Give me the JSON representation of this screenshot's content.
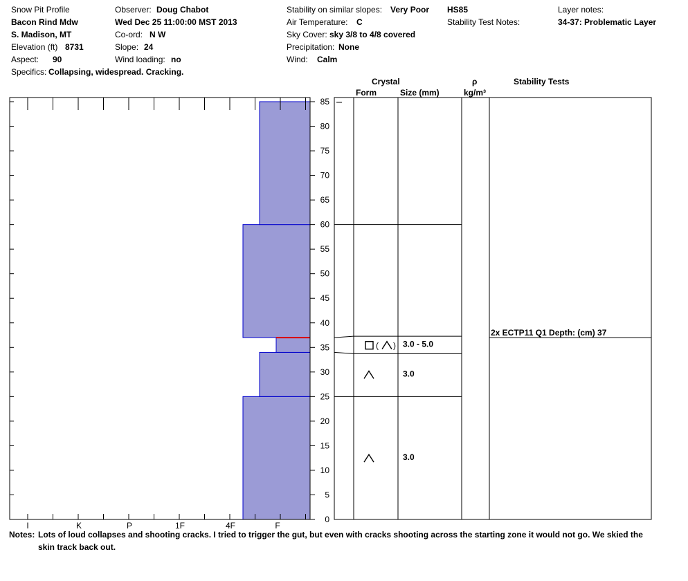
{
  "header": {
    "title": "Snow Pit Profile",
    "location": "Bacon Rind Mdw",
    "region": "S. Madison, MT",
    "elevation_label": "Elevation (ft)",
    "elevation_value": "8731",
    "aspect_label": "Aspect:",
    "aspect_value": "90",
    "specifics_label": "Specifics:",
    "specifics_value": "Collapsing, widespread. Cracking.",
    "observer_label": "Observer:",
    "observer_value": "Doug Chabot",
    "date": "Wed Dec 25 11:00:00 MST 2013",
    "coord_label": "Co-ord:",
    "coord_value": "N  W",
    "slope_label": "Slope:",
    "slope_value": "24",
    "wind_loading_label": "Wind loading:",
    "wind_loading_value": "no",
    "stability_label": "Stability on similar slopes:",
    "stability_value": "Very Poor",
    "air_temp_label": "Air Temperature:",
    "air_temp_value": "C",
    "sky_label": "Sky Cover:",
    "sky_value": "sky 3/8 to 4/8 covered",
    "precip_label": "Precipitation:",
    "precip_value": "None",
    "wind_label": "Wind:",
    "wind_value": "Calm",
    "hs": "HS85",
    "stability_notes_label": "Stability Test Notes:",
    "layer_notes_label": "Layer notes:",
    "layer_notes_value": "34-37: Problematic Layer"
  },
  "columns": {
    "crystal": "Crystal",
    "form": "Form",
    "size": "Size (mm)",
    "rho": "ρ",
    "density_unit": "kg/m³",
    "stability_tests": "Stability Tests"
  },
  "chart_data": {
    "type": "bar",
    "orientation": "horizontal-step",
    "y_axis": {
      "min": 0,
      "max": 85,
      "ticks": [
        "0",
        "5",
        "10",
        "15",
        "20",
        "25",
        "30",
        "35",
        "40",
        "45",
        "50",
        "55",
        "60",
        "65",
        "70",
        "75",
        "80",
        "85"
      ]
    },
    "hardness_ticks": [
      "I",
      "K",
      "P",
      "1F",
      "4F",
      "F"
    ],
    "colors": {
      "fill": "#9b9bd6",
      "edge": "#0000cc",
      "weak_layer": "#dd0000"
    },
    "layers": [
      {
        "bottom": 0,
        "top": 25,
        "hardness": 4.0
      },
      {
        "bottom": 25,
        "top": 34,
        "hardness": 3.4
      },
      {
        "bottom": 34,
        "top": 37,
        "hardness": 2.1
      },
      {
        "bottom": 37,
        "top": 60,
        "hardness": 4.0
      },
      {
        "bottom": 60,
        "top": 85,
        "hardness": 3.4
      }
    ],
    "weak_layer_depth": 37,
    "crystal_layers": [
      {
        "bottom": 0,
        "top": 25,
        "form": "depth-hoar",
        "size": "3.0"
      },
      {
        "bottom": 25,
        "top": 34,
        "form": "depth-hoar",
        "size": "3.0"
      },
      {
        "bottom": 34,
        "top": 37,
        "form": "faceted-mixed",
        "size": "3.0 - 5.0"
      }
    ],
    "stability_tests": [
      {
        "depth": 37,
        "label": "2x ECTP11 Q1 Depth: (cm) 37"
      }
    ]
  },
  "notes": {
    "label": "Notes:",
    "text": "Lots of loud collapses and shooting cracks.  I tried to trigger the gut, but even with cracks shooting across the starting zone it would not go. We skied the skin track back out."
  }
}
